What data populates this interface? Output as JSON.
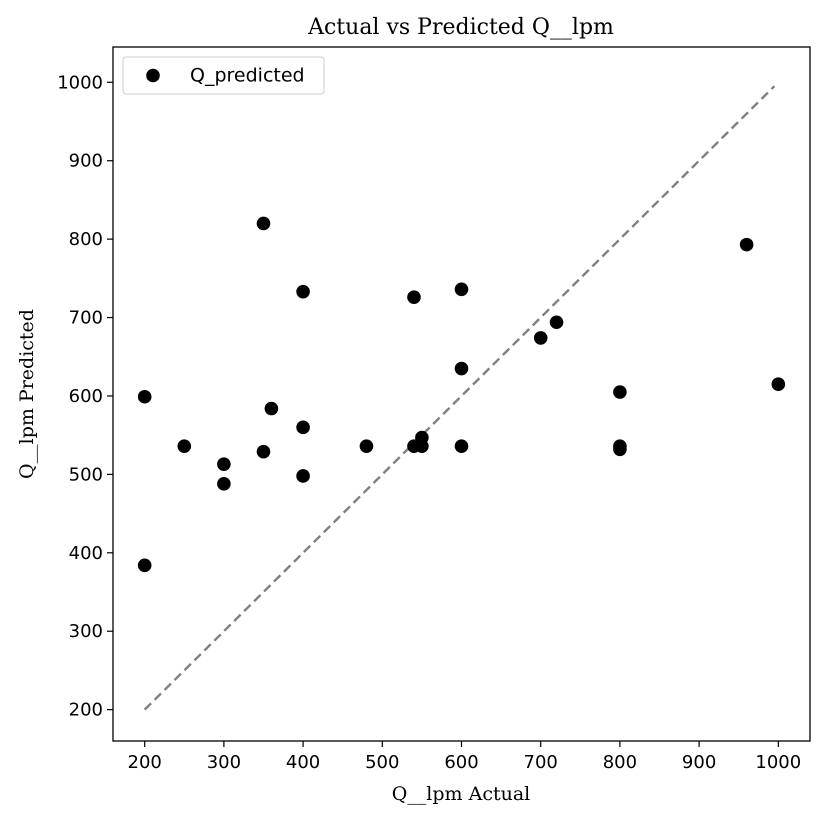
{
  "chart_data": {
    "type": "scatter",
    "title": "Actual vs Predicted Q__lpm",
    "xlabel": "Q__lpm Actual",
    "ylabel": "Q__lpm Predicted",
    "xlim": [
      160,
      1040
    ],
    "ylim": [
      160,
      1045
    ],
    "xticks": [
      200,
      300,
      400,
      500,
      600,
      700,
      800,
      900,
      1000
    ],
    "yticks": [
      200,
      300,
      400,
      500,
      600,
      700,
      800,
      900,
      1000
    ],
    "grid": false,
    "legend": {
      "position": "top-left",
      "entries": [
        "Q_predicted"
      ]
    },
    "reference_line": {
      "style": "dashed",
      "color": "#808080",
      "x": [
        200,
        995
      ],
      "y": [
        200,
        995
      ]
    },
    "series": [
      {
        "name": "Q_predicted",
        "color": "#000000",
        "points": [
          [
            200,
            599
          ],
          [
            200,
            384
          ],
          [
            250,
            536
          ],
          [
            300,
            513
          ],
          [
            300,
            488
          ],
          [
            350,
            820
          ],
          [
            350,
            529
          ],
          [
            360,
            584
          ],
          [
            400,
            733
          ],
          [
            400,
            560
          ],
          [
            400,
            498
          ],
          [
            480,
            536
          ],
          [
            540,
            726
          ],
          [
            540,
            536
          ],
          [
            550,
            547
          ],
          [
            550,
            536
          ],
          [
            600,
            736
          ],
          [
            600,
            635
          ],
          [
            600,
            536
          ],
          [
            700,
            674
          ],
          [
            720,
            694
          ],
          [
            800,
            605
          ],
          [
            800,
            536
          ],
          [
            800,
            532
          ],
          [
            960,
            793
          ],
          [
            1000,
            615
          ]
        ]
      }
    ]
  }
}
